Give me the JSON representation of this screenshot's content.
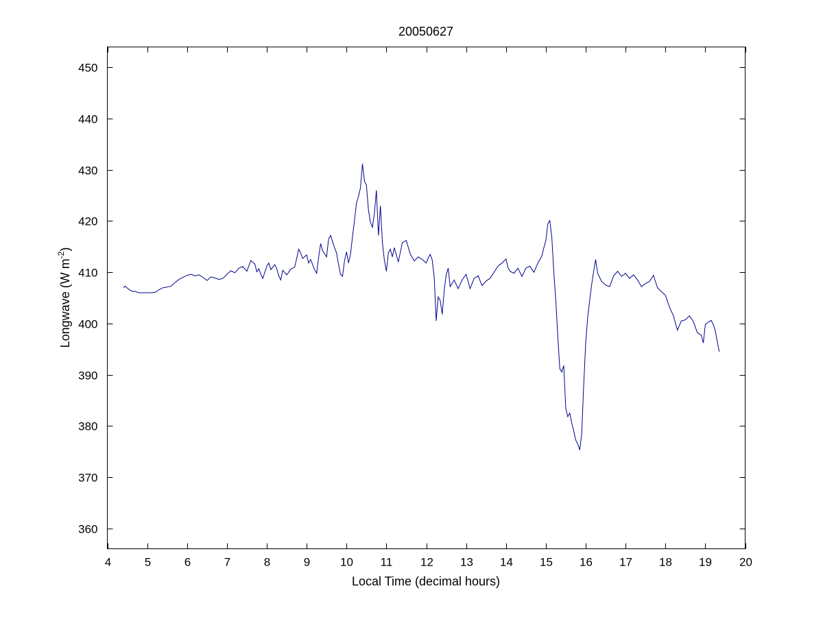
{
  "chart_data": {
    "type": "line",
    "title": "20050627",
    "xlabel": "Local Time (decimal hours)",
    "ylabel": {
      "base": "Longwave (W m",
      "superscript": "-2",
      "close": ")"
    },
    "xlim": [
      4,
      20
    ],
    "ylim": [
      356,
      454
    ],
    "xticks": [
      4,
      5,
      6,
      7,
      8,
      9,
      10,
      11,
      12,
      13,
      14,
      15,
      16,
      17,
      18,
      19,
      20
    ],
    "yticks": [
      360,
      370,
      380,
      390,
      400,
      410,
      420,
      430,
      440,
      450
    ],
    "grid": false,
    "line_color": "#00008b",
    "series": [
      {
        "x": [
          4.4,
          4.45,
          4.5,
          4.55,
          4.6,
          4.65,
          4.7,
          4.75,
          4.8,
          4.9,
          5.0,
          5.1,
          5.2,
          5.3,
          5.4,
          5.5,
          5.6,
          5.7,
          5.8,
          5.9,
          6.0,
          6.1,
          6.2,
          6.3,
          6.4,
          6.5,
          6.6,
          6.7,
          6.8,
          6.9,
          7.0,
          7.1,
          7.2,
          7.3,
          7.4,
          7.5,
          7.6,
          7.7,
          7.75,
          7.8,
          7.85,
          7.9,
          8.0,
          8.05,
          8.1,
          8.2,
          8.25,
          8.3,
          8.35,
          8.4,
          8.5,
          8.6,
          8.7,
          8.8,
          8.85,
          8.9,
          9.0,
          9.05,
          9.1,
          9.2,
          9.25,
          9.3,
          9.35,
          9.4,
          9.5,
          9.55,
          9.6,
          9.7,
          9.75,
          9.8,
          9.85,
          9.9,
          9.95,
          10.0,
          10.05,
          10.1,
          10.15,
          10.2,
          10.25,
          10.3,
          10.35,
          10.4,
          10.45,
          10.5,
          10.55,
          10.6,
          10.65,
          10.7,
          10.75,
          10.8,
          10.85,
          10.9,
          10.95,
          11.0,
          11.05,
          11.1,
          11.15,
          11.2,
          11.3,
          11.4,
          11.5,
          11.6,
          11.7,
          11.8,
          11.9,
          12.0,
          12.05,
          12.1,
          12.15,
          12.2,
          12.25,
          12.3,
          12.35,
          12.4,
          12.45,
          12.5,
          12.55,
          12.6,
          12.7,
          12.8,
          12.9,
          13.0,
          13.1,
          13.2,
          13.3,
          13.4,
          13.5,
          13.6,
          13.7,
          13.8,
          13.9,
          14.0,
          14.05,
          14.1,
          14.2,
          14.3,
          14.4,
          14.5,
          14.6,
          14.7,
          14.8,
          14.9,
          14.95,
          15.0,
          15.05,
          15.1,
          15.15,
          15.2,
          15.25,
          15.3,
          15.35,
          15.4,
          15.45,
          15.5,
          15.55,
          15.6,
          15.65,
          15.7,
          15.75,
          15.8,
          15.85,
          15.9,
          15.95,
          16.0,
          16.05,
          16.1,
          16.15,
          16.2,
          16.25,
          16.3,
          16.4,
          16.5,
          16.6,
          16.7,
          16.8,
          16.9,
          17.0,
          17.1,
          17.2,
          17.3,
          17.4,
          17.5,
          17.6,
          17.7,
          17.8,
          17.9,
          18.0,
          18.1,
          18.2,
          18.3,
          18.4,
          18.5,
          18.6,
          18.7,
          18.8,
          18.9,
          18.95,
          19.0,
          19.1,
          19.15,
          19.2,
          19.25,
          19.3,
          19.35
        ],
        "y": [
          407.0,
          407.3,
          406.9,
          406.6,
          406.4,
          406.2,
          406.3,
          406.1,
          406.0,
          406.0,
          406.0,
          406.0,
          406.1,
          406.6,
          407.0,
          407.1,
          407.3,
          408.0,
          408.6,
          409.0,
          409.4,
          409.6,
          409.3,
          409.5,
          409.0,
          408.4,
          409.1,
          408.9,
          408.6,
          408.8,
          409.6,
          410.3,
          409.9,
          410.8,
          411.1,
          410.2,
          412.3,
          411.6,
          410.1,
          410.7,
          409.6,
          408.8,
          411.2,
          411.8,
          410.5,
          411.5,
          410.7,
          409.3,
          408.5,
          410.4,
          409.5,
          410.6,
          411.0,
          414.5,
          413.8,
          412.7,
          413.4,
          411.8,
          412.5,
          410.5,
          409.8,
          412.9,
          415.6,
          414.2,
          413.0,
          416.5,
          417.2,
          414.8,
          413.8,
          411.5,
          409.6,
          409.2,
          412.2,
          414.0,
          411.8,
          413.6,
          417.0,
          420.2,
          423.5,
          424.8,
          426.5,
          431.2,
          427.8,
          427.0,
          422.2,
          419.8,
          418.8,
          421.5,
          426.0,
          417.2,
          423.0,
          415.8,
          412.3,
          410.2,
          413.8,
          414.5,
          413.0,
          414.8,
          412.0,
          415.8,
          416.2,
          413.5,
          412.2,
          413.0,
          412.5,
          411.8,
          412.8,
          413.5,
          412.4,
          409.0,
          400.5,
          405.2,
          404.5,
          401.8,
          406.5,
          409.5,
          410.8,
          407.2,
          408.5,
          406.8,
          408.5,
          409.6,
          406.8,
          408.8,
          409.3,
          407.4,
          408.3,
          408.8,
          410.0,
          411.2,
          411.8,
          412.6,
          410.9,
          410.2,
          409.8,
          410.8,
          409.2,
          410.8,
          411.2,
          410.0,
          411.8,
          413.2,
          414.8,
          416.2,
          419.5,
          420.1,
          416.8,
          410.0,
          404.5,
          397.5,
          391.2,
          390.5,
          391.8,
          383.5,
          381.8,
          382.5,
          380.5,
          379.0,
          377.2,
          376.5,
          375.3,
          378.5,
          388.0,
          396.2,
          401.2,
          404.5,
          407.6,
          410.2,
          412.5,
          409.8,
          408.2,
          407.5,
          407.2,
          409.3,
          410.2,
          409.2,
          409.8,
          408.8,
          409.5,
          408.5,
          407.2,
          407.8,
          408.2,
          409.4,
          407.0,
          406.2,
          405.5,
          403.2,
          401.5,
          398.7,
          400.5,
          400.7,
          401.5,
          400.4,
          398.2,
          397.7,
          396.2,
          399.8,
          400.4,
          400.6,
          399.8,
          398.6,
          396.5,
          394.5
        ]
      }
    ]
  }
}
